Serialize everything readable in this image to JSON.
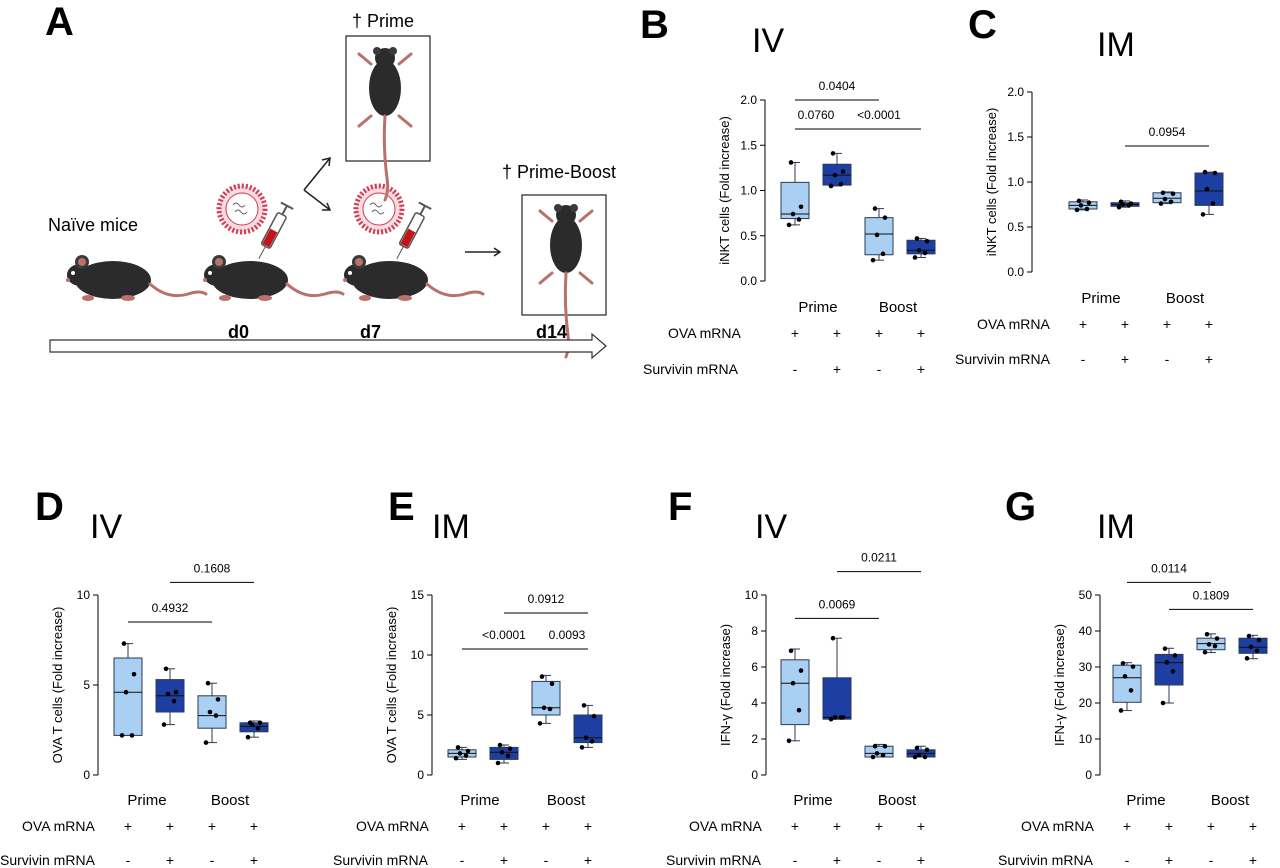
{
  "schematic": {
    "letter": "A",
    "naive_label": "Naïve mice",
    "prime_label": "† Prime",
    "primeboost_label": "† Prime-Boost",
    "days": [
      "d0",
      "d7",
      "d14"
    ],
    "icons": [
      "mouse-icon",
      "lnp-icon",
      "syringe-icon",
      "mouse-dissection-icon",
      "arrow-icon",
      "timeline-arrow-icon"
    ],
    "colors": {
      "mouse": "#2b2b2b",
      "tail": "#b9716b",
      "lnp": "#d23a52",
      "syringe_fluid": "#c0171b"
    }
  },
  "style": {
    "prime_color": "#a9cff3",
    "survivin_color": "#1d3fa3",
    "edge_color": "#2b3a55"
  },
  "chart_data": [
    {
      "panel": "B",
      "route": "IV",
      "type": "box",
      "ylabel": "iNKT cells (Fold increase)",
      "ylim": [
        0,
        2.0
      ],
      "yticks": [
        0.0,
        0.5,
        1.0,
        1.5,
        2.0
      ],
      "tick_labels": [
        "0.0",
        "0.5",
        "1.0",
        "1.5",
        "2.0"
      ],
      "group_labels": [
        "Prime",
        "Boost"
      ],
      "rows": [
        {
          "label": "OVA mRNA",
          "values": [
            "+",
            "+",
            "+",
            "+"
          ]
        },
        {
          "label": "Survivin mRNA",
          "values": [
            "-",
            "+",
            "-",
            "+"
          ]
        }
      ],
      "boxes": [
        {
          "fill": "light",
          "min": 0.62,
          "q1": 0.69,
          "median": 0.74,
          "q3": 1.09,
          "max": 1.31,
          "points": [
            0.62,
            0.68,
            0.74,
            0.82,
            1.31
          ]
        },
        {
          "fill": "dark",
          "min": 1.05,
          "q1": 1.06,
          "median": 1.17,
          "q3": 1.29,
          "max": 1.41,
          "points": [
            1.05,
            1.07,
            1.17,
            1.21,
            1.41
          ]
        },
        {
          "fill": "light",
          "min": 0.23,
          "q1": 0.29,
          "median": 0.52,
          "q3": 0.7,
          "max": 0.8,
          "points": [
            0.23,
            0.3,
            0.51,
            0.7,
            0.8
          ]
        },
        {
          "fill": "dark",
          "min": 0.26,
          "q1": 0.3,
          "median": 0.34,
          "q3": 0.45,
          "max": 0.47,
          "points": [
            0.26,
            0.31,
            0.34,
            0.44,
            0.47
          ]
        }
      ],
      "brackets": [
        {
          "from": 1,
          "to": 3,
          "y": 2.0,
          "label": "0.0404"
        },
        {
          "from": 1,
          "to": 2,
          "y": 1.68,
          "label": "0.0760"
        },
        {
          "from": 2,
          "to": 4,
          "y": 1.68,
          "label": "<0.0001"
        }
      ]
    },
    {
      "panel": "C",
      "route": "IM",
      "type": "box",
      "ylabel": "iNKT cells (Fold increase)",
      "ylim": [
        0,
        2.0
      ],
      "yticks": [
        0.0,
        0.5,
        1.0,
        1.5,
        2.0
      ],
      "tick_labels": [
        "0.0",
        "0.5",
        "1.0",
        "1.5",
        "2.0"
      ],
      "group_labels": [
        "Prime",
        "Boost"
      ],
      "rows": [
        {
          "label": "OVA mRNA",
          "values": [
            "+",
            "+",
            "+",
            "+"
          ]
        },
        {
          "label": "Survivin mRNA",
          "values": [
            "-",
            "+",
            "-",
            "+"
          ]
        }
      ],
      "boxes": [
        {
          "fill": "light",
          "min": 0.69,
          "q1": 0.7,
          "median": 0.74,
          "q3": 0.78,
          "max": 0.8,
          "points": [
            0.69,
            0.7,
            0.74,
            0.77,
            0.79
          ]
        },
        {
          "fill": "dark",
          "min": 0.72,
          "q1": 0.73,
          "median": 0.75,
          "q3": 0.77,
          "max": 0.79,
          "points": [
            0.72,
            0.74,
            0.75,
            0.76,
            0.78
          ]
        },
        {
          "fill": "light",
          "min": 0.76,
          "q1": 0.77,
          "median": 0.82,
          "q3": 0.88,
          "max": 0.89,
          "points": [
            0.76,
            0.78,
            0.81,
            0.87,
            0.88
          ]
        },
        {
          "fill": "dark",
          "min": 0.64,
          "q1": 0.74,
          "median": 0.9,
          "q3": 1.1,
          "max": 1.11,
          "points": [
            0.64,
            0.76,
            0.92,
            1.1,
            1.11
          ]
        }
      ],
      "brackets": [
        {
          "from": 2,
          "to": 4,
          "y": 1.4,
          "label": "0.0954"
        }
      ]
    },
    {
      "panel": "D",
      "route": "IV",
      "type": "box",
      "ylabel": "OVA T cells (Fold increase)",
      "ylim": [
        0,
        10
      ],
      "yticks": [
        0,
        5,
        10
      ],
      "tick_labels": [
        "0",
        "5",
        "10"
      ],
      "group_labels": [
        "Prime",
        "Boost"
      ],
      "rows": [
        {
          "label": "OVA mRNA",
          "values": [
            "+",
            "+",
            "+",
            "+"
          ]
        },
        {
          "label": "Survivin mRNA",
          "values": [
            "-",
            "+",
            "-",
            "+"
          ]
        }
      ],
      "boxes": [
        {
          "fill": "light",
          "min": 2.2,
          "q1": 2.2,
          "median": 4.6,
          "q3": 6.5,
          "max": 7.3,
          "points": [
            2.2,
            2.2,
            4.6,
            5.6,
            7.3
          ]
        },
        {
          "fill": "dark",
          "min": 2.8,
          "q1": 3.5,
          "median": 4.4,
          "q3": 5.3,
          "max": 5.9,
          "points": [
            2.8,
            4.1,
            4.5,
            4.6,
            5.9
          ]
        },
        {
          "fill": "light",
          "min": 1.8,
          "q1": 2.6,
          "median": 3.3,
          "q3": 4.4,
          "max": 5.1,
          "points": [
            1.8,
            3.3,
            3.5,
            4.2,
            5.1
          ]
        },
        {
          "fill": "dark",
          "min": 2.1,
          "q1": 2.4,
          "median": 2.7,
          "q3": 2.9,
          "max": 3.0,
          "points": [
            2.1,
            2.6,
            2.8,
            2.9,
            2.9
          ]
        }
      ],
      "brackets": [
        {
          "from": 2,
          "to": 4,
          "y": 10.7,
          "label": "0.1608"
        },
        {
          "from": 1,
          "to": 3,
          "y": 8.5,
          "label": "0.4932"
        }
      ]
    },
    {
      "panel": "E",
      "route": "IM",
      "type": "box",
      "ylabel": "OVA T cells (Fold increase)",
      "ylim": [
        0,
        15
      ],
      "yticks": [
        0,
        5,
        10,
        15
      ],
      "tick_labels": [
        "0",
        "5",
        "10",
        "15"
      ],
      "group_labels": [
        "Prime",
        "Boost"
      ],
      "rows": [
        {
          "label": "OVA mRNA",
          "values": [
            "+",
            "+",
            "+",
            "+"
          ]
        },
        {
          "label": "Survivin mRNA",
          "values": [
            "-",
            "+",
            "-",
            "+"
          ]
        }
      ],
      "boxes": [
        {
          "fill": "light",
          "min": 1.3,
          "q1": 1.5,
          "median": 1.8,
          "q3": 2.1,
          "max": 2.3,
          "points": [
            1.4,
            1.6,
            1.8,
            2.0,
            2.3
          ]
        },
        {
          "fill": "dark",
          "min": 1.0,
          "q1": 1.3,
          "median": 1.9,
          "q3": 2.3,
          "max": 2.5,
          "points": [
            1.0,
            1.6,
            1.9,
            2.2,
            2.5
          ]
        },
        {
          "fill": "light",
          "min": 4.3,
          "q1": 5.0,
          "median": 5.6,
          "q3": 7.8,
          "max": 8.3,
          "points": [
            4.3,
            5.5,
            5.6,
            7.6,
            8.2
          ]
        },
        {
          "fill": "dark",
          "min": 2.3,
          "q1": 2.7,
          "median": 3.1,
          "q3": 5.0,
          "max": 5.8,
          "points": [
            2.3,
            2.8,
            3.1,
            4.9,
            5.8
          ]
        }
      ],
      "brackets": [
        {
          "from": 2,
          "to": 4,
          "y": 13.5,
          "label": "0.0912"
        },
        {
          "from": 1,
          "to": 3,
          "y": 10.5,
          "label": "<0.0001"
        },
        {
          "from": 3,
          "to": 4,
          "y": 10.5,
          "label": "0.0093"
        }
      ]
    },
    {
      "panel": "F",
      "route": "IV",
      "type": "box",
      "ylabel": "IFN-γ (Fold increase)",
      "ylim": [
        0,
        10
      ],
      "yticks": [
        0,
        2,
        4,
        6,
        8,
        10
      ],
      "tick_labels": [
        "0",
        "2",
        "4",
        "6",
        "8",
        "10"
      ],
      "group_labels": [
        "Prime",
        "Boost"
      ],
      "rows": [
        {
          "label": "OVA mRNA",
          "values": [
            "+",
            "+",
            "+",
            "+"
          ]
        },
        {
          "label": "Survivin mRNA",
          "values": [
            "-",
            "+",
            "-",
            "+"
          ]
        }
      ],
      "boxes": [
        {
          "fill": "light",
          "min": 1.9,
          "q1": 2.8,
          "median": 5.1,
          "q3": 6.4,
          "max": 7.0,
          "points": [
            1.9,
            3.6,
            5.1,
            5.8,
            6.9
          ]
        },
        {
          "fill": "dark",
          "min": 3.1,
          "q1": 3.1,
          "median": 3.2,
          "q3": 5.4,
          "max": 7.6,
          "points": [
            3.1,
            3.2,
            3.2,
            3.2,
            7.6
          ]
        },
        {
          "fill": "light",
          "min": 1.0,
          "q1": 1.0,
          "median": 1.2,
          "q3": 1.6,
          "max": 1.7,
          "points": [
            1.0,
            1.1,
            1.2,
            1.6,
            1.6
          ]
        },
        {
          "fill": "dark",
          "min": 1.0,
          "q1": 1.0,
          "median": 1.2,
          "q3": 1.4,
          "max": 1.6,
          "points": [
            1.0,
            1.0,
            1.1,
            1.4,
            1.5
          ]
        }
      ],
      "brackets": [
        {
          "from": 2,
          "to": 4,
          "y": 11.3,
          "label": "0.0211"
        },
        {
          "from": 1,
          "to": 3,
          "y": 8.7,
          "label": "0.0069"
        }
      ]
    },
    {
      "panel": "G",
      "route": "IM",
      "type": "box",
      "ylabel": "IFN-γ (Fold increase)",
      "ylim": [
        0,
        50
      ],
      "yticks": [
        0,
        10,
        20,
        30,
        40,
        50
      ],
      "tick_labels": [
        "0",
        "10",
        "20",
        "30",
        "40",
        "50"
      ],
      "group_labels": [
        "Prime",
        "Boost"
      ],
      "rows": [
        {
          "label": "OVA mRNA",
          "values": [
            "+",
            "+",
            "+",
            "+"
          ]
        },
        {
          "label": "Survivin mRNA",
          "values": [
            "-",
            "+",
            "-",
            "+"
          ]
        }
      ],
      "boxes": [
        {
          "fill": "light",
          "min": 17.9,
          "q1": 20.2,
          "median": 27.0,
          "q3": 30.5,
          "max": 31.2,
          "points": [
            17.9,
            23.5,
            27.4,
            30.1,
            31.0
          ]
        },
        {
          "fill": "dark",
          "min": 20.0,
          "q1": 25.0,
          "median": 31.2,
          "q3": 33.5,
          "max": 35.2,
          "points": [
            20.0,
            28.8,
            31.3,
            33.2,
            35.1
          ]
        },
        {
          "fill": "light",
          "min": 34.0,
          "q1": 34.8,
          "median": 36.5,
          "q3": 38.0,
          "max": 39.2,
          "points": [
            34.1,
            35.8,
            36.3,
            37.9,
            39.1
          ]
        },
        {
          "fill": "dark",
          "min": 32.3,
          "q1": 33.8,
          "median": 35.5,
          "q3": 38.0,
          "max": 38.8,
          "points": [
            32.4,
            34.5,
            35.6,
            37.5,
            38.6
          ]
        }
      ],
      "brackets": [
        {
          "from": 1,
          "to": 3,
          "y": 53.5,
          "label": "0.0114"
        },
        {
          "from": 2,
          "to": 4,
          "y": 46.0,
          "label": "0.1809"
        }
      ]
    }
  ]
}
